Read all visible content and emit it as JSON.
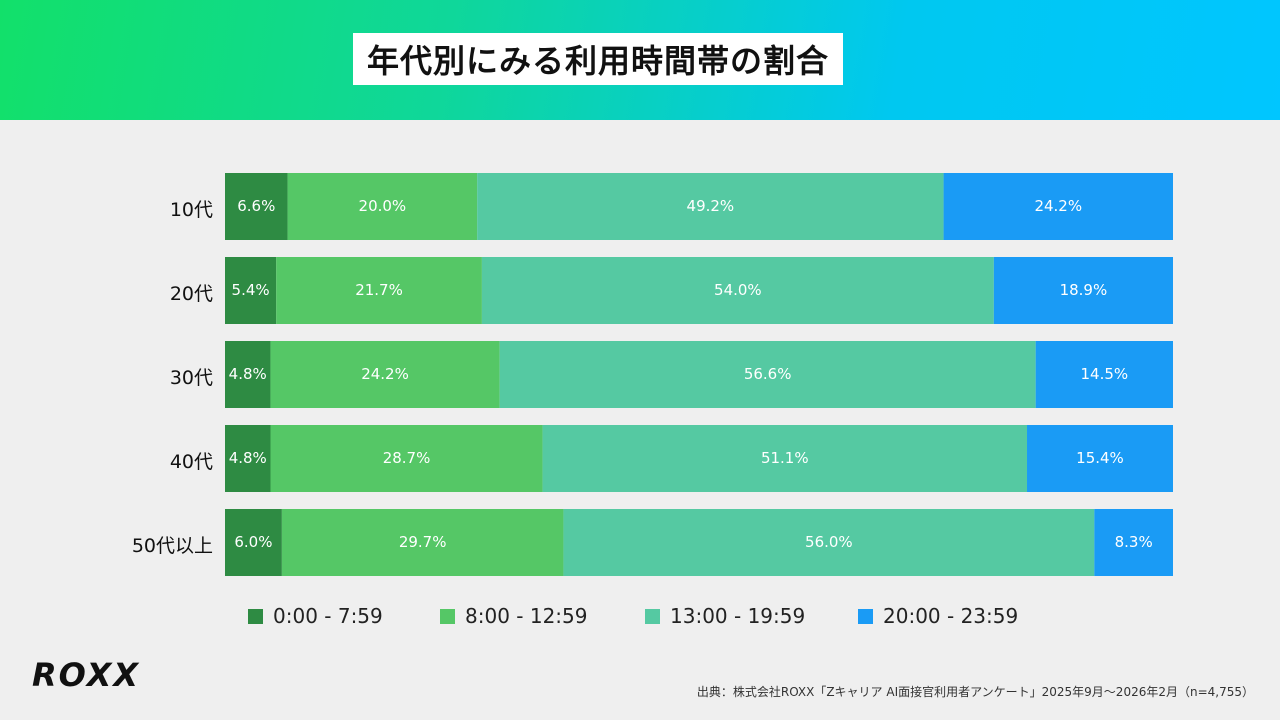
{
  "header": {
    "title": "年代別にみる利用時間帯の割合"
  },
  "chart_data": {
    "type": "bar",
    "orientation": "horizontal",
    "stacked": true,
    "title": "年代別にみる利用時間帯の割合",
    "categories": [
      "10代",
      "20代",
      "30代",
      "40代",
      "50代以上"
    ],
    "series": [
      {
        "name": "0:00 - 7:59",
        "color": "#2e8b43",
        "values": [
          6.6,
          5.4,
          4.8,
          4.8,
          6.0
        ],
        "labels": [
          "6.6%",
          "5.4%",
          "4.8%",
          "4.8%",
          "6.0%"
        ]
      },
      {
        "name": "8:00 - 12:59",
        "color": "#55c766",
        "values": [
          20.0,
          21.7,
          24.2,
          28.7,
          29.7
        ],
        "labels": [
          "20.0%",
          "21.7%",
          "24.2%",
          "28.7%",
          "29.7%"
        ]
      },
      {
        "name": "13:00 - 19:59",
        "color": "#55c9a2",
        "values": [
          49.2,
          54.0,
          56.6,
          51.1,
          56.0
        ],
        "labels": [
          "49.2%",
          "54.0%",
          "56.6%",
          "51.1%",
          "56.0%"
        ]
      },
      {
        "name": "20:00 - 23:59",
        "color": "#1a9bf5",
        "values": [
          24.2,
          18.9,
          14.5,
          15.4,
          8.3
        ],
        "labels": [
          "24.2%",
          "18.9%",
          "14.5%",
          "15.4%",
          "8.3%"
        ]
      }
    ],
    "xlim": [
      0,
      100
    ],
    "legend_position": "bottom",
    "grid": false
  },
  "footer": {
    "logo": "ROXX",
    "source": "出典：株式会社ROXX「Zキャリア AI面接官利用者アンケート」2025年9月〜2026年2月（n=4,755）"
  }
}
